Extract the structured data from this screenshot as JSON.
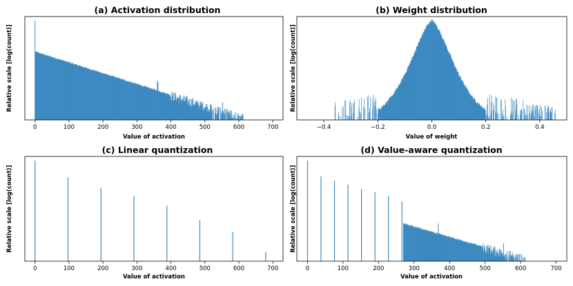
{
  "chart_data": [
    {
      "id": "a",
      "type": "bar",
      "title": "(a) Activation distribution",
      "xlabel": "Value of activation",
      "ylabel": "Relative scale [log(count)]",
      "xlim": [
        -30,
        730
      ],
      "ylim": [
        0,
        1.0
      ],
      "xticks": [
        0,
        100,
        200,
        300,
        400,
        500,
        600,
        700
      ],
      "yticks_shown": false,
      "color": "#3d8ac1",
      "distribution": {
        "kind": "activation",
        "x_start": 0,
        "x_end": 612,
        "value_at_start": 0.66,
        "value_at_end": 0.02,
        "spike_at_zero": 0.96
      },
      "outliers": [
        {
          "x": 360,
          "value": 0.38
        },
        {
          "x": 362,
          "value": 0.36
        },
        {
          "x": 540,
          "value": 0.12
        },
        {
          "x": 552,
          "value": 0.17
        },
        {
          "x": 575,
          "value": 0.06
        },
        {
          "x": 600,
          "value": 0.04
        },
        {
          "x": 612,
          "value": 0.04
        }
      ]
    },
    {
      "id": "b",
      "type": "bar",
      "title": "(b) Weight distribution",
      "xlabel": "Value of weight",
      "ylabel": "Relative scale [log(count)]",
      "xlim": [
        -0.5,
        0.5
      ],
      "ylim": [
        0,
        1.0
      ],
      "xticks": [
        -0.4,
        -0.2,
        0.0,
        0.2,
        0.4
      ],
      "xtick_labels": [
        "−0.4",
        "−0.2",
        "0.0",
        "0.2",
        "0.4"
      ],
      "yticks_shown": false,
      "color": "#3d8ac1",
      "distribution": {
        "kind": "weight",
        "center": 0.0,
        "peak_value": 0.96,
        "x_min": -0.36,
        "x_max": 0.46
      }
    },
    {
      "id": "c",
      "type": "bar",
      "title": "(c) Linear quantization",
      "xlabel": "Value of activation",
      "ylabel": "Relative scale [log(count)]",
      "xlim": [
        -30,
        730
      ],
      "ylim": [
        0,
        1.0
      ],
      "xticks": [
        0,
        100,
        200,
        300,
        400,
        500,
        600,
        700
      ],
      "yticks_shown": false,
      "color": "#3d8ac1",
      "x": [
        0,
        97,
        194,
        291,
        388,
        485,
        582,
        679
      ],
      "values": [
        0.96,
        0.8,
        0.7,
        0.62,
        0.53,
        0.39,
        0.28,
        0.09
      ]
    },
    {
      "id": "d",
      "type": "bar",
      "title": "(d) Value-aware quantization",
      "xlabel": "Value of activation",
      "ylabel": "Relative scale [log(count)]",
      "xlim": [
        -30,
        730
      ],
      "ylim": [
        0,
        1.0
      ],
      "xticks": [
        0,
        100,
        200,
        300,
        400,
        500,
        600,
        700
      ],
      "yticks_shown": false,
      "color": "#3d8ac1",
      "x": [
        0,
        38,
        76,
        114,
        152,
        190,
        228,
        266
      ],
      "values": [
        0.96,
        0.81,
        0.77,
        0.73,
        0.69,
        0.66,
        0.62,
        0.57
      ],
      "distribution": {
        "kind": "activation_tail",
        "x_start": 270,
        "x_end": 612,
        "value_at_start": 0.36,
        "value_at_end": 0.02
      },
      "outliers": [
        {
          "x": 368,
          "value": 0.36
        },
        {
          "x": 540,
          "value": 0.12
        },
        {
          "x": 552,
          "value": 0.17
        },
        {
          "x": 575,
          "value": 0.06
        },
        {
          "x": 612,
          "value": 0.04
        }
      ]
    }
  ]
}
